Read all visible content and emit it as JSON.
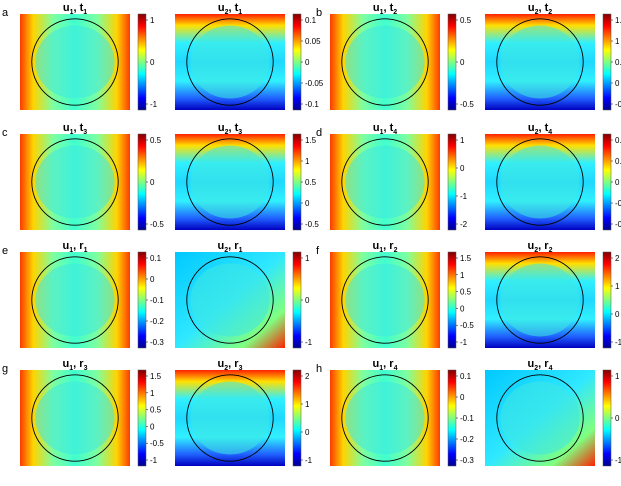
{
  "panel_letters": [
    "a",
    "b",
    "c",
    "d",
    "e",
    "f",
    "g",
    "h"
  ],
  "colormap": "jet",
  "colormap_stops": [
    "#00008f",
    "#0000ff",
    "#00ffff",
    "#ffff00",
    "#ff0000",
    "#800000"
  ],
  "circle_color": "#000000",
  "panels": [
    {
      "letter": "a",
      "title_var": "1",
      "title_load": "t",
      "title_sub": "1",
      "ticks": [
        "1",
        "0",
        "-1"
      ],
      "pattern": "lr"
    },
    {
      "letter": "",
      "title_var": "2",
      "title_load": "t",
      "title_sub": "1",
      "ticks": [
        "0.1",
        "0.05",
        "0",
        "-0.05",
        "-0.1"
      ],
      "pattern": "tb"
    },
    {
      "letter": "b",
      "title_var": "1",
      "title_load": "t",
      "title_sub": "2",
      "ticks": [
        "0.5",
        "0",
        "-0.5"
      ],
      "pattern": "lr"
    },
    {
      "letter": "",
      "title_var": "2",
      "title_load": "t",
      "title_sub": "2",
      "ticks": [
        "1.5",
        "1",
        "0.5",
        "0",
        "-0.5"
      ],
      "pattern": "tb"
    },
    {
      "letter": "c",
      "title_var": "1",
      "title_load": "t",
      "title_sub": "3",
      "ticks": [
        "0.5",
        "0",
        "-0.5"
      ],
      "pattern": "lr"
    },
    {
      "letter": "",
      "title_var": "2",
      "title_load": "t",
      "title_sub": "3",
      "ticks": [
        "1.5",
        "1",
        "0.5",
        "0",
        "-0.5"
      ],
      "pattern": "tb"
    },
    {
      "letter": "d",
      "title_var": "1",
      "title_load": "t",
      "title_sub": "4",
      "ticks": [
        "1",
        "0",
        "-1",
        "-2"
      ],
      "pattern": "lr"
    },
    {
      "letter": "",
      "title_var": "2",
      "title_load": "t",
      "title_sub": "4",
      "ticks": [
        "0.1",
        "0.05",
        "0",
        "-0.05",
        "-0.1"
      ],
      "pattern": "tb"
    },
    {
      "letter": "e",
      "title_var": "1",
      "title_load": "r",
      "title_sub": "1",
      "ticks": [
        "0.1",
        "0",
        "-0.1",
        "-0.2",
        "-0.3"
      ],
      "pattern": "lr"
    },
    {
      "letter": "",
      "title_var": "2",
      "title_load": "r",
      "title_sub": "1",
      "ticks": [
        "1",
        "0",
        "-1"
      ],
      "pattern": "diag"
    },
    {
      "letter": "f",
      "title_var": "1",
      "title_load": "r",
      "title_sub": "2",
      "ticks": [
        "1.5",
        "1",
        "0.5",
        "0",
        "-0.5",
        "-1"
      ],
      "pattern": "lr"
    },
    {
      "letter": "",
      "title_var": "2",
      "title_load": "r",
      "title_sub": "2",
      "ticks": [
        "2",
        "1",
        "0",
        "-1"
      ],
      "pattern": "tb"
    },
    {
      "letter": "g",
      "title_var": "1",
      "title_load": "r",
      "title_sub": "3",
      "ticks": [
        "1.5",
        "1",
        "0.5",
        "0",
        "-0.5",
        "-1"
      ],
      "pattern": "lr"
    },
    {
      "letter": "",
      "title_var": "2",
      "title_load": "r",
      "title_sub": "3",
      "ticks": [
        "2",
        "1",
        "0",
        "-1"
      ],
      "pattern": "tb"
    },
    {
      "letter": "h",
      "title_var": "1",
      "title_load": "r",
      "title_sub": "4",
      "ticks": [
        "0.1",
        "0",
        "-0.1",
        "-0.2",
        "-0.3"
      ],
      "pattern": "lr"
    },
    {
      "letter": "",
      "title_var": "2",
      "title_load": "r",
      "title_sub": "4",
      "ticks": [
        "1",
        "0",
        "-1"
      ],
      "pattern": "diag"
    }
  ]
}
